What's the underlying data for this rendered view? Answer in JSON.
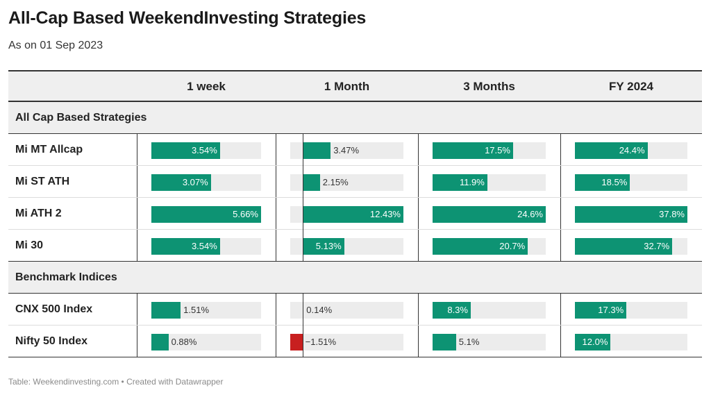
{
  "title": "All-Cap Based WeekendInvesting Strategies",
  "subtitle": "As on 01 Sep 2023",
  "footer": "Table: Weekendinvesting.com • Created with Datawrapper",
  "colors": {
    "positive": "#0d9373",
    "negative": "#c81f1f",
    "track": "#ececec"
  },
  "chart_data": {
    "type": "table",
    "columns": [
      "1 week",
      "1 Month",
      "3 Months",
      "FY 2024"
    ],
    "groups": [
      {
        "name": "All Cap Based Strategies",
        "rows": [
          {
            "name": "Mi MT Allcap",
            "labels": [
              "3.54%",
              "3.47%",
              "17.5%",
              "24.4%"
            ],
            "values": [
              3.54,
              3.47,
              17.5,
              24.4
            ]
          },
          {
            "name": "Mi ST ATH",
            "labels": [
              "3.07%",
              "2.15%",
              "11.9%",
              "18.5%"
            ],
            "values": [
              3.07,
              2.15,
              11.9,
              18.5
            ]
          },
          {
            "name": "Mi ATH 2",
            "labels": [
              "5.66%",
              "12.43%",
              "24.6%",
              "37.8%"
            ],
            "values": [
              5.66,
              12.43,
              24.6,
              37.8
            ]
          },
          {
            "name": "Mi 30",
            "labels": [
              "3.54%",
              "5.13%",
              "20.7%",
              "32.7%"
            ],
            "values": [
              3.54,
              5.13,
              20.7,
              32.7
            ]
          }
        ]
      },
      {
        "name": "Benchmark Indices",
        "rows": [
          {
            "name": "CNX 500 Index",
            "labels": [
              "1.51%",
              "0.14%",
              "8.3%",
              "17.3%"
            ],
            "values": [
              1.51,
              0.14,
              8.3,
              17.3
            ]
          },
          {
            "name": "Nifty 50 Index",
            "labels": [
              "0.88%",
              "−1.51%",
              "5.1%",
              "12.0%"
            ],
            "values": [
              0.88,
              -1.51,
              5.1,
              12.0
            ]
          }
        ]
      }
    ]
  }
}
